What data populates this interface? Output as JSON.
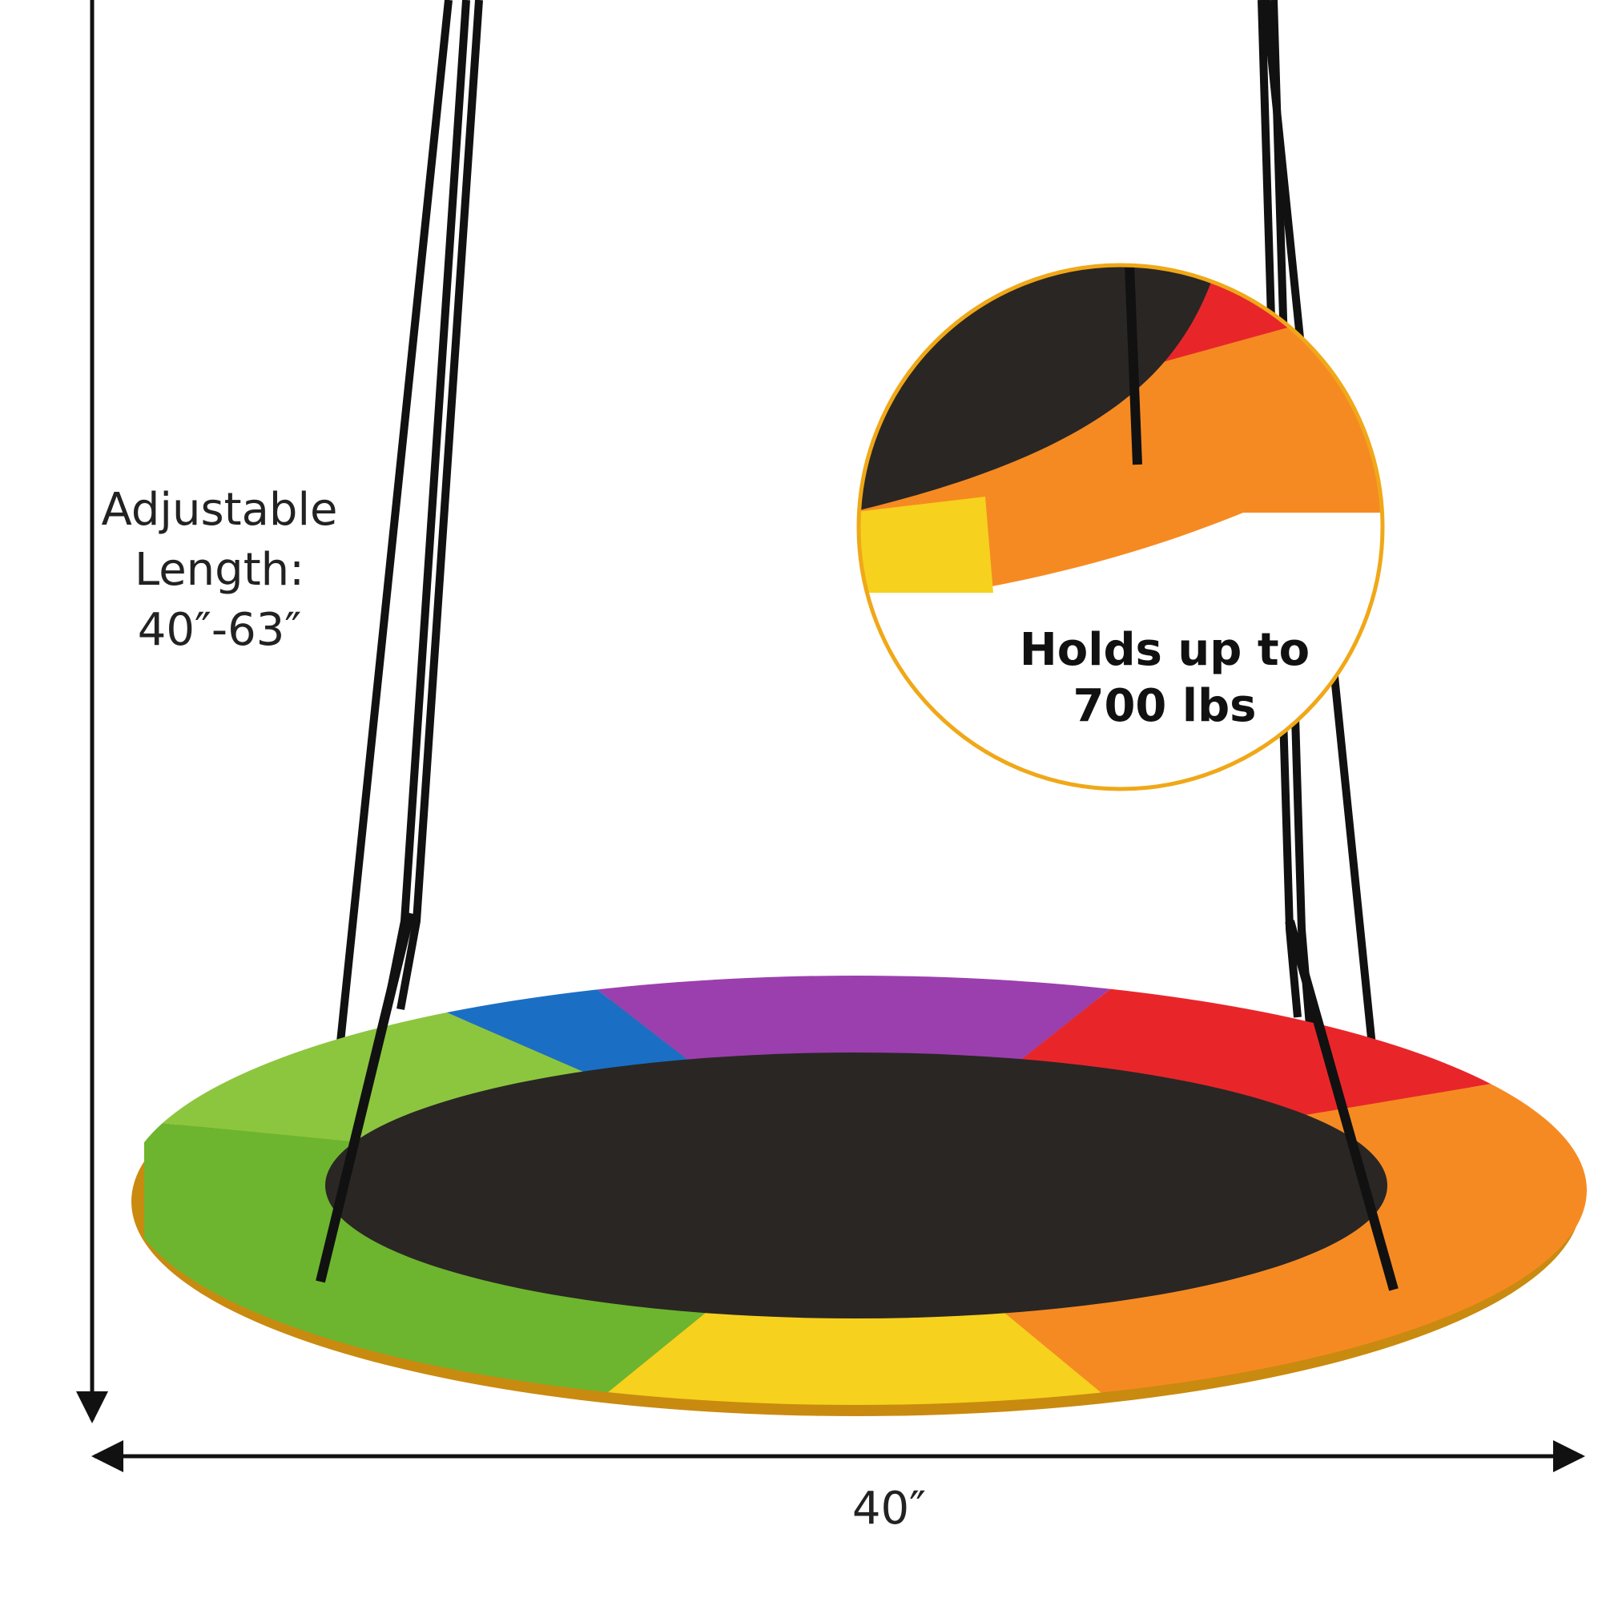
{
  "length_label": {
    "lines": [
      "Adjustable",
      "Length:",
      "40″-63″"
    ]
  },
  "width_label": "40″",
  "callout": {
    "lines": [
      "Holds up to",
      "700 lbs"
    ]
  }
}
